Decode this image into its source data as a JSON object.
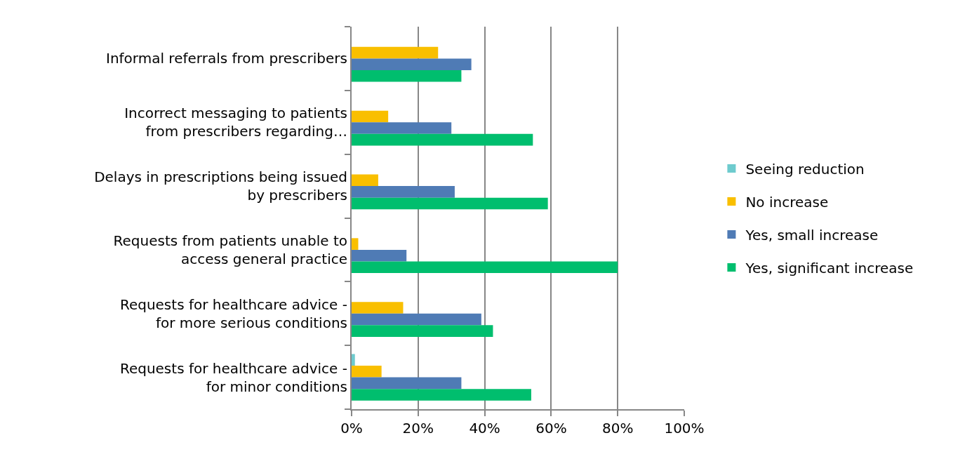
{
  "chart_data": {
    "type": "bar",
    "orientation": "horizontal",
    "categories": [
      "Informal referrals from prescribers",
      "Incorrect messaging to patients\nfrom prescribers regarding…",
      "Delays in prescriptions being issued\nby prescribers",
      "Requests from patients unable to\naccess general practice",
      "Requests for healthcare advice -\nfor more serious conditions",
      "Requests for healthcare advice -\nfor minor conditions"
    ],
    "series": [
      {
        "name": "Seeing reduction",
        "color": "#6ecbce",
        "values": [
          null,
          null,
          null,
          null,
          null,
          1
        ]
      },
      {
        "name": "No increase",
        "color": "#f9bf00",
        "values": [
          26,
          11,
          8,
          2,
          15.5,
          9
        ]
      },
      {
        "name": "Yes, small increase",
        "color": "#4f7bb5",
        "values": [
          36,
          30,
          31,
          16.5,
          39,
          33
        ]
      },
      {
        "name": "Yes, significant increase",
        "color": "#00be6e",
        "values": [
          33,
          54.5,
          59,
          80,
          42.5,
          54
        ]
      }
    ],
    "xlim": [
      0,
      100
    ],
    "xticks": [
      {
        "value": 0,
        "label": "0%"
      },
      {
        "value": 20,
        "label": "20%"
      },
      {
        "value": 40,
        "label": "40%"
      },
      {
        "value": 60,
        "label": "60%"
      },
      {
        "value": 80,
        "label": "80%"
      },
      {
        "value": 100,
        "label": "100%"
      }
    ],
    "grid": "x",
    "legend": "right"
  }
}
